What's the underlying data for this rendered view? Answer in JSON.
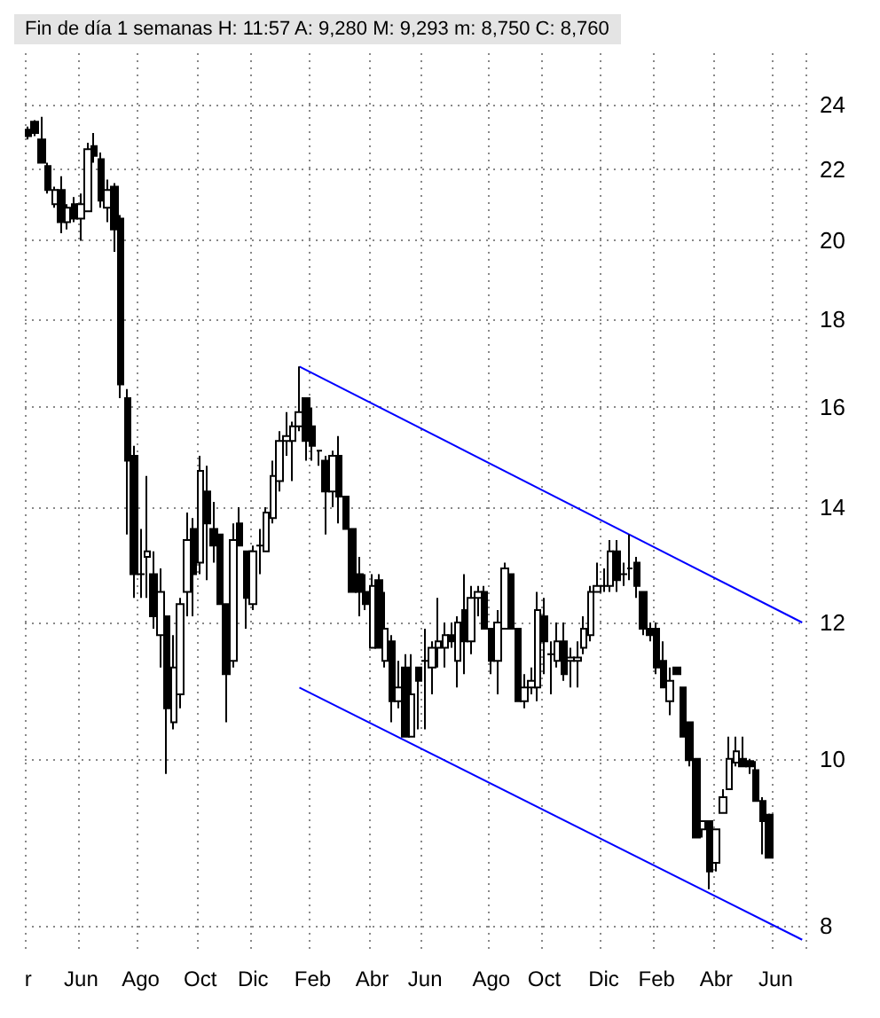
{
  "chart_data": {
    "type": "candlestick",
    "title": "Fin de día 1 semanas H: 11:57 A: 9,280 M: 9,293 m: 8,750 C: 8,760",
    "categories": [
      "r",
      null,
      null,
      null,
      null,
      null,
      null,
      null,
      "Jun",
      null,
      null,
      null,
      null,
      null,
      null,
      null,
      null,
      "Ago",
      null,
      null,
      null,
      null,
      null,
      null,
      null,
      null,
      "Oct",
      null,
      null,
      null,
      null,
      null,
      null,
      null,
      "Dic",
      null,
      null,
      null,
      null,
      null,
      null,
      null,
      null,
      "Feb",
      null,
      null,
      null,
      null,
      null,
      null,
      null,
      null,
      "Abr",
      null,
      null,
      null,
      null,
      null,
      null,
      null,
      "Jun",
      null,
      null,
      null,
      null,
      null,
      null,
      null,
      null,
      null,
      "Ago",
      null,
      null,
      null,
      null,
      null,
      null,
      null,
      "Oct",
      null,
      null,
      null,
      null,
      null,
      null,
      null,
      null,
      "Dic",
      null,
      null,
      null,
      null,
      null,
      null,
      null,
      "Feb",
      null,
      null,
      null,
      null,
      null,
      null,
      null,
      null,
      "Abr",
      null,
      null,
      null,
      null,
      null,
      null,
      null,
      null,
      "Jun",
      null,
      null,
      null,
      null
    ],
    "ohlc": [
      [
        23.2,
        23.3,
        22.9,
        23.0
      ],
      [
        23.45,
        23.5,
        23.0,
        23.1
      ],
      [
        22.9,
        23.6,
        22.2,
        22.2
      ],
      [
        22.1,
        22.2,
        21.3,
        21.4
      ],
      [
        21.0,
        21.5,
        20.9,
        21.4
      ],
      [
        21.4,
        21.8,
        20.2,
        20.5
      ],
      [
        20.5,
        21.0,
        20.3,
        20.9
      ],
      [
        21.0,
        21.2,
        20.5,
        20.6
      ],
      [
        20.6,
        21.3,
        20.0,
        21.0
      ],
      [
        20.8,
        22.8,
        20.8,
        22.6
      ],
      [
        22.7,
        23.1,
        22.2,
        22.4
      ],
      [
        22.3,
        22.5,
        20.9,
        21.1
      ],
      [
        20.9,
        21.7,
        20.5,
        21.4
      ],
      [
        21.5,
        21.6,
        19.7,
        20.3
      ],
      [
        20.6,
        20.7,
        16.2,
        16.5
      ],
      [
        16.2,
        16.4,
        13.5,
        14.9
      ],
      [
        15.0,
        15.2,
        12.4,
        12.8
      ],
      [
        12.8,
        13.6,
        12.4,
        12.8
      ],
      [
        13.1,
        14.6,
        12.4,
        13.2
      ],
      [
        12.8,
        13.2,
        11.9,
        12.1
      ],
      [
        11.8,
        12.9,
        11.3,
        12.5
      ],
      [
        12.1,
        12.1,
        9.8,
        10.7
      ],
      [
        10.5,
        11.8,
        10.4,
        11.3
      ],
      [
        10.9,
        12.4,
        10.7,
        12.3
      ],
      [
        12.5,
        13.9,
        12.1,
        13.4
      ],
      [
        13.6,
        13.8,
        12.1,
        12.8
      ],
      [
        13.0,
        15.0,
        12.8,
        14.7
      ],
      [
        14.3,
        14.8,
        12.7,
        13.7
      ],
      [
        13.6,
        14.1,
        13.0,
        13.3
      ],
      [
        13.5,
        13.5,
        12.3,
        12.3
      ],
      [
        12.3,
        12.3,
        10.5,
        11.2
      ],
      [
        11.4,
        13.7,
        11.3,
        13.4
      ],
      [
        13.7,
        14.0,
        13.3,
        13.3
      ],
      [
        13.2,
        13.2,
        11.9,
        12.4
      ],
      [
        12.3,
        13.3,
        12.2,
        13.2
      ],
      [
        13.3,
        13.6,
        12.8,
        13.3
      ],
      [
        13.2,
        14.0,
        13.2,
        13.9
      ],
      [
        13.8,
        14.9,
        13.7,
        14.6
      ],
      [
        14.5,
        15.5,
        14.3,
        15.3
      ],
      [
        15.3,
        15.9,
        15.0,
        15.4
      ],
      [
        15.3,
        15.7,
        14.5,
        15.6
      ],
      [
        15.6,
        16.9,
        15.5,
        15.9
      ],
      [
        16.2,
        16.2,
        14.9,
        15.3
      ],
      [
        15.6,
        16.0,
        14.9,
        15.2
      ],
      [
        15.1,
        15.1,
        14.8,
        15.1
      ],
      [
        14.9,
        15.0,
        13.5,
        14.3
      ],
      [
        14.3,
        15.1,
        14.0,
        15.0
      ],
      [
        15.0,
        15.4,
        13.7,
        14.2
      ],
      [
        14.2,
        14.2,
        13.6,
        13.6
      ],
      [
        13.6,
        13.6,
        12.5,
        12.5
      ],
      [
        12.8,
        13.1,
        12.1,
        12.5
      ],
      [
        12.5,
        12.8,
        12.2,
        12.3
      ],
      [
        11.6,
        12.8,
        11.6,
        12.6
      ],
      [
        12.7,
        12.8,
        11.6,
        11.6
      ],
      [
        11.4,
        12.5,
        11.3,
        11.9
      ],
      [
        11.7,
        11.8,
        10.5,
        10.8
      ],
      [
        10.8,
        11.4,
        10.7,
        11.0
      ],
      [
        11.3,
        11.5,
        10.3,
        10.3
      ],
      [
        10.3,
        11.5,
        10.3,
        10.9
      ],
      [
        11.3,
        11.3,
        10.4,
        11.1
      ],
      [
        11.4,
        11.9,
        10.4,
        11.4
      ],
      [
        11.3,
        11.7,
        10.9,
        11.6
      ],
      [
        11.6,
        12.4,
        11.3,
        11.7
      ],
      [
        11.6,
        12.0,
        11.3,
        11.8
      ],
      [
        11.8,
        12.0,
        11.6,
        11.7
      ],
      [
        11.4,
        12.1,
        11.0,
        12.0
      ],
      [
        12.2,
        12.8,
        11.2,
        11.7
      ],
      [
        11.7,
        12.6,
        11.5,
        12.4
      ],
      [
        12.4,
        12.6,
        12.1,
        12.5
      ],
      [
        12.5,
        12.6,
        11.9,
        11.9
      ],
      [
        11.9,
        11.9,
        11.2,
        11.4
      ],
      [
        11.4,
        12.2,
        10.9,
        12.0
      ],
      [
        11.9,
        13.0,
        11.9,
        12.9
      ],
      [
        12.8,
        12.8,
        11.9,
        11.9
      ],
      [
        11.9,
        11.9,
        10.8,
        10.8
      ],
      [
        10.8,
        11.2,
        10.7,
        11.0
      ],
      [
        11.0,
        11.3,
        10.9,
        11.1
      ],
      [
        11.0,
        12.5,
        10.8,
        12.2
      ],
      [
        12.1,
        12.4,
        11.2,
        11.7
      ],
      [
        11.5,
        11.7,
        10.9,
        11.5
      ],
      [
        11.4,
        12.0,
        11.3,
        11.7
      ],
      [
        11.7,
        12.0,
        11.1,
        11.2
      ],
      [
        11.4,
        11.6,
        11.0,
        11.45
      ],
      [
        11.4,
        11.7,
        11.0,
        11.45
      ],
      [
        11.6,
        12.1,
        11.5,
        11.9
      ],
      [
        11.8,
        12.6,
        11.7,
        12.5
      ],
      [
        12.5,
        13.0,
        12.5,
        12.6
      ],
      [
        12.6,
        12.9,
        12.5,
        12.6
      ],
      [
        12.6,
        13.4,
        12.5,
        13.2
      ],
      [
        13.2,
        13.4,
        12.5,
        12.7
      ],
      [
        12.8,
        13.0,
        12.6,
        12.8
      ],
      [
        12.9,
        13.5,
        12.7,
        12.9
      ],
      [
        13.0,
        13.1,
        12.4,
        12.6
      ],
      [
        12.5,
        12.5,
        11.8,
        11.9
      ],
      [
        11.9,
        12.0,
        11.7,
        11.8
      ],
      [
        11.9,
        12.0,
        11.2,
        11.3
      ],
      [
        11.4,
        11.7,
        11.0,
        11.0
      ],
      [
        10.8,
        11.3,
        10.6,
        11.1
      ],
      [
        11.3,
        11.3,
        11.2,
        11.2
      ],
      [
        11.0,
        11.0,
        10.3,
        10.3
      ],
      [
        10.5,
        10.5,
        9.9,
        9.98
      ],
      [
        10.0,
        10.0,
        9.0,
        9.0
      ],
      [
        9.1,
        9.2,
        9.0,
        9.2
      ],
      [
        9.2,
        9.2,
        8.4,
        8.6
      ],
      [
        8.7,
        9.1,
        8.6,
        9.1
      ],
      [
        9.3,
        9.6,
        9.3,
        9.5
      ],
      [
        9.6,
        10.3,
        9.6,
        10.0
      ],
      [
        9.95,
        10.3,
        9.9,
        10.1
      ],
      [
        10.0,
        10.3,
        9.9,
        9.9
      ],
      [
        9.97,
        10.0,
        9.8,
        9.9
      ],
      [
        9.85,
        9.97,
        9.45,
        9.45
      ],
      [
        9.45,
        9.5,
        8.8,
        9.2
      ],
      [
        9.28,
        9.293,
        8.75,
        8.76
      ],
      null,
      null,
      null,
      null,
      null
    ],
    "series": [
      {
        "type": "line",
        "color": "#0000ff",
        "values": [
          null,
          null,
          null,
          null,
          null,
          null,
          null,
          null,
          null,
          null,
          null,
          null,
          null,
          null,
          null,
          null,
          null,
          null,
          null,
          null,
          null,
          null,
          null,
          null,
          null,
          null,
          null,
          null,
          null,
          null,
          null,
          null,
          null,
          null,
          null,
          null,
          null,
          null,
          null,
          null,
          null,
          16.9,
          null,
          null,
          null,
          null,
          null,
          null,
          null,
          null,
          null,
          null,
          null,
          null,
          null,
          null,
          null,
          null,
          null,
          null,
          null,
          null,
          null,
          null,
          null,
          null,
          null,
          null,
          null,
          null,
          null,
          null,
          null,
          null,
          null,
          null,
          null,
          null,
          null,
          null,
          null,
          null,
          null,
          null,
          null,
          null,
          null,
          null,
          null,
          null,
          null,
          null,
          null,
          null,
          null,
          null,
          null,
          null,
          null,
          null,
          null,
          null,
          null,
          null,
          null,
          null,
          null,
          null,
          null,
          null,
          null,
          null,
          null,
          null,
          null,
          null,
          null,
          12.0
        ]
      },
      {
        "type": "line",
        "color": "#0000ff",
        "values": [
          null,
          null,
          null,
          null,
          null,
          null,
          null,
          null,
          null,
          null,
          null,
          null,
          null,
          null,
          null,
          null,
          null,
          null,
          null,
          null,
          null,
          null,
          null,
          null,
          null,
          null,
          null,
          null,
          null,
          null,
          null,
          null,
          null,
          null,
          null,
          null,
          null,
          null,
          null,
          null,
          null,
          11.0,
          null,
          null,
          null,
          null,
          null,
          null,
          null,
          null,
          null,
          null,
          null,
          null,
          null,
          null,
          null,
          null,
          null,
          null,
          null,
          null,
          null,
          null,
          null,
          null,
          null,
          null,
          null,
          null,
          null,
          null,
          null,
          null,
          null,
          null,
          null,
          null,
          null,
          null,
          null,
          null,
          null,
          null,
          null,
          null,
          null,
          null,
          null,
          null,
          null,
          null,
          null,
          null,
          null,
          null,
          null,
          null,
          null,
          null,
          null,
          null,
          null,
          null,
          null,
          null,
          null,
          null,
          null,
          null,
          null,
          null,
          null,
          null,
          null,
          null,
          null,
          7.85
        ]
      }
    ],
    "ylim": [
      7.7,
      25.7
    ],
    "yticks": [
      8,
      10,
      12,
      14,
      16,
      18,
      20,
      22,
      24
    ],
    "log": "y",
    "grid": true
  }
}
